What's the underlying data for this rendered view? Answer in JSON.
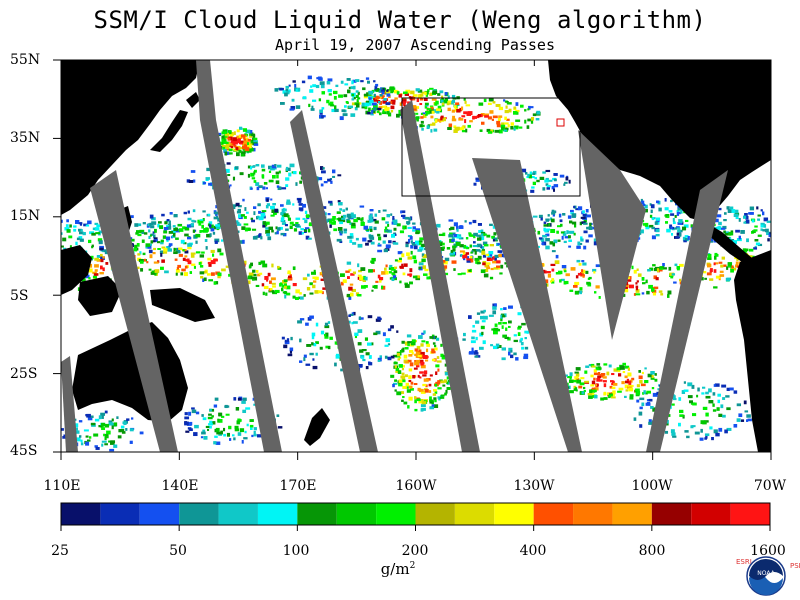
{
  "title": "SSM/I Cloud Liquid Water (Weng algorithm)",
  "subtitle": "April 19, 2007  Ascending Passes",
  "map": {
    "lon_range": [
      "110E",
      "70W"
    ],
    "lat_range": [
      "45S",
      "55N"
    ],
    "lat_labels": [
      "55N",
      "35N",
      "15N",
      "5S",
      "25S",
      "45S"
    ],
    "lon_labels": [
      "110E",
      "140E",
      "170E",
      "160W",
      "130W",
      "100W",
      "70W"
    ],
    "land_color": "#000000",
    "no_data_color": "#646464",
    "clear_color": "#ffffff"
  },
  "colorbar": {
    "colors": [
      "#08106a",
      "#0a2db5",
      "#1450f0",
      "#0f9696",
      "#10c8c8",
      "#00f5f5",
      "#069606",
      "#00c800",
      "#00f000",
      "#b4b400",
      "#dcdc00",
      "#ffff00",
      "#ff5000",
      "#ff7800",
      "#ffa000",
      "#960000",
      "#d20000",
      "#ff1414"
    ],
    "labels": [
      "25",
      "50",
      "100",
      "200",
      "400",
      "800",
      "1600"
    ],
    "units": "g/m",
    "units_exp": "2"
  },
  "logo": {
    "left_letters": "ESRL",
    "right_letters": "PSD",
    "center": "NOAA"
  }
}
